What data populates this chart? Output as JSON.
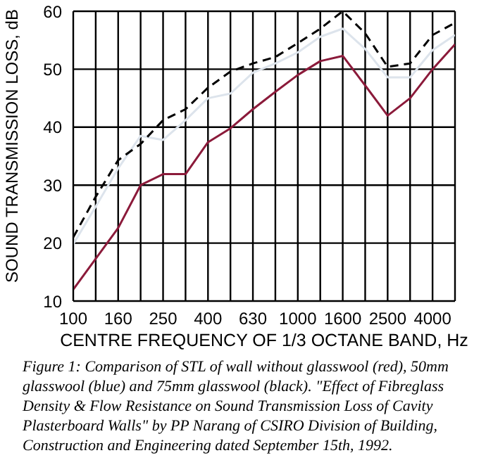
{
  "chart_data": {
    "type": "line",
    "xlabel": "CENTRE FREQUENCY OF 1/3 OCTANE BAND, Hz",
    "ylabel": "SOUND TRANSMISSION LOSS, dB",
    "categories": [
      "100",
      null,
      "160",
      null,
      "250",
      null,
      "400",
      null,
      "630",
      null,
      "1000",
      null,
      "1600",
      null,
      "2500",
      null,
      "4000",
      null
    ],
    "series": [
      {
        "color": "#dde4ec",
        "line_style": "solid",
        "values": [
          19.8,
          26.3,
          32.9,
          38.5,
          37.8,
          41.2,
          45,
          45.8,
          49.4,
          51,
          52.9,
          55.6,
          57,
          53.5,
          48.6,
          48.6,
          53.3,
          55.9
        ]
      },
      {
        "color": "#000000",
        "line_style": "dashed",
        "values": [
          21,
          28,
          34.3,
          37.1,
          41.2,
          43.1,
          46.8,
          49.6,
          51,
          52.1,
          54.5,
          57,
          60,
          56.2,
          50.4,
          51,
          55.9,
          58
        ]
      },
      {
        "color": "#8b1a3a",
        "line_style": "solid",
        "values": [
          12,
          17.3,
          22.6,
          30,
          31.9,
          31.9,
          37.4,
          39.8,
          43.1,
          46.1,
          49,
          51.4,
          52.3,
          47.2,
          42,
          45,
          50,
          54.3
        ]
      }
    ],
    "ylim": [
      10,
      60
    ],
    "yticks": [
      10,
      20,
      30,
      40,
      50,
      60
    ],
    "grid": true,
    "marker": "none",
    "legend": false,
    "annotations": [
      "Figure 1: Comparison of STL of wall without glasswool (red), 50mm glasswool (blue) and 75mm glasswool (black).  \"Effect of Fibreglass Density & Flow Resistance on Sound Transmission Loss of Cavity Plasterboard Walls\" by PP Narang of CSIRO Division of Building, Construction and Engineering dated September 15th, 1992."
    ]
  }
}
